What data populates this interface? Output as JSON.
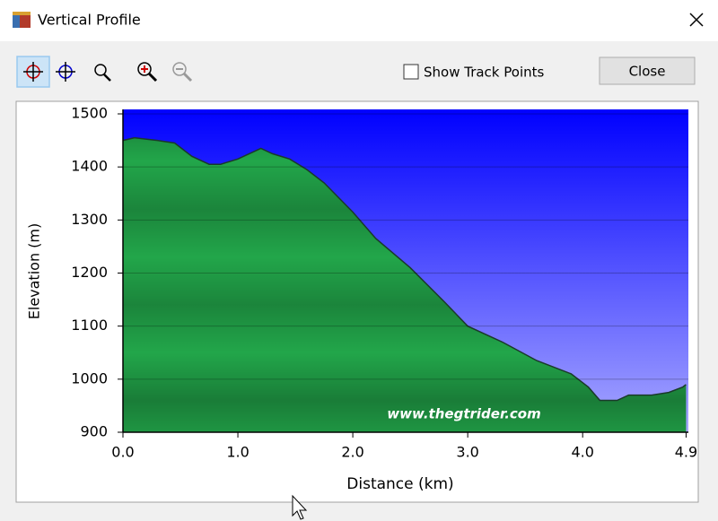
{
  "window": {
    "title": "Vertical Profile"
  },
  "toolbar": {
    "checkbox_label": "Show Track Points",
    "button": "Close"
  },
  "chart_data": {
    "type": "area",
    "xlabel": "Distance (km)",
    "ylabel": "Elevation (m)",
    "watermark": "www.thegtrider.com",
    "x": [
      0,
      0.1,
      0.3,
      0.45,
      0.6,
      0.75,
      0.85,
      1.0,
      1.2,
      1.3,
      1.45,
      1.6,
      1.75,
      2.0,
      2.2,
      2.5,
      2.8,
      3.0,
      3.3,
      3.6,
      3.9,
      4.05,
      4.15,
      4.3,
      4.4,
      4.6,
      4.75,
      4.87,
      4.9
    ],
    "values": [
      1450,
      1455,
      1450,
      1445,
      1420,
      1405,
      1405,
      1415,
      1435,
      1425,
      1415,
      1395,
      1370,
      1315,
      1265,
      1210,
      1145,
      1100,
      1070,
      1035,
      1010,
      985,
      960,
      960,
      970,
      970,
      975,
      985,
      990
    ],
    "color": "#22a64a",
    "line_color": "#1a3a2a",
    "background_colors": [
      "#0000ff",
      "#a8a8ff"
    ],
    "xlim": [
      0,
      4.92
    ],
    "ylim": [
      900,
      1500
    ],
    "xticks": [
      {
        "value": 0,
        "label": "0.0"
      },
      {
        "value": 1,
        "label": "1.0"
      },
      {
        "value": 2,
        "label": "2.0"
      },
      {
        "value": 3,
        "label": "3.0"
      },
      {
        "value": 4,
        "label": "4.0"
      },
      4.9
    ],
    "yticks": [
      900,
      1000,
      1100,
      1200,
      1300,
      1400,
      1500
    ],
    "grid": true
  }
}
